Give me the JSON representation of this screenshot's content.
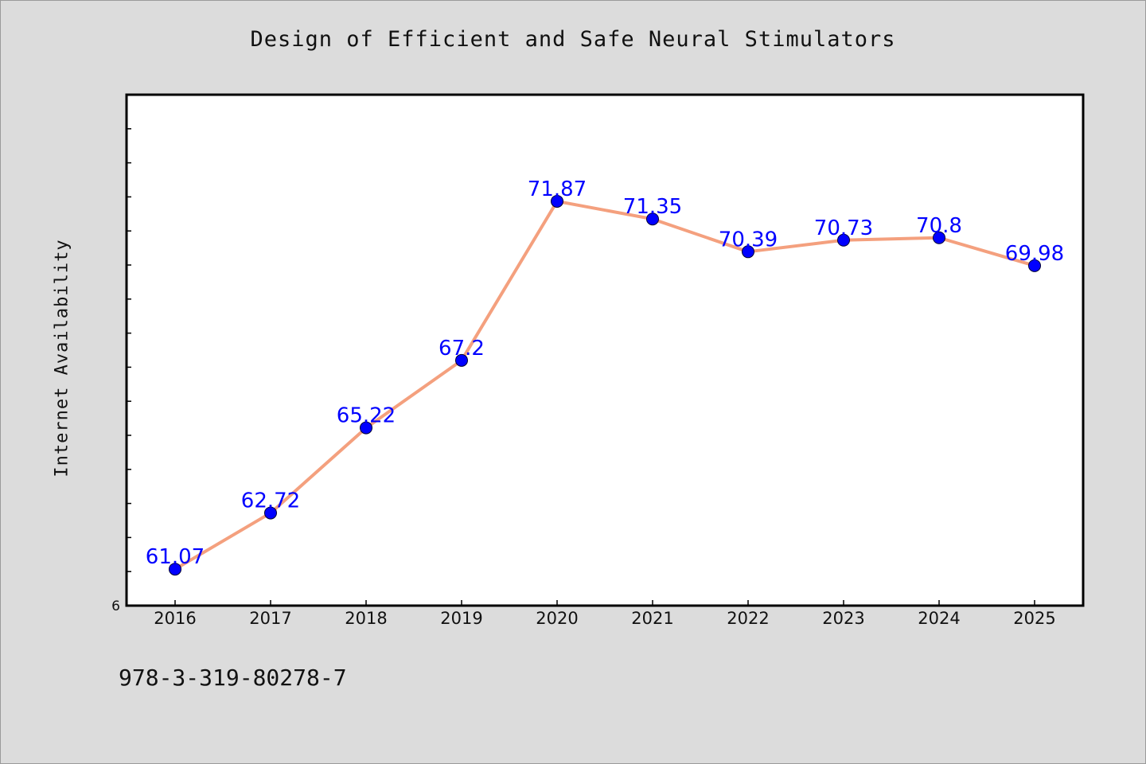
{
  "title": "Design of Efficient and Safe Neural Stimulators",
  "footer_text": "978-3-319-80278-7",
  "colors": {
    "background": "#dcdcdc",
    "plot_background": "#ffffff",
    "line": "#f4a07e",
    "marker": "#0000ff",
    "data_label": "#0000ff"
  },
  "chart_data": {
    "type": "line",
    "title": "Design of Efficient and Safe Neural Stimulators",
    "xlabel": "",
    "ylabel": "Internet Availability",
    "categories": [
      "2016",
      "2017",
      "2018",
      "2019",
      "2020",
      "2021",
      "2022",
      "2023",
      "2024",
      "2025"
    ],
    "series": [
      {
        "values": [
          61.07,
          62.72,
          65.22,
          67.2,
          71.87,
          71.35,
          70.39,
          70.73,
          70.8,
          69.98
        ]
      }
    ],
    "data_labels": [
      "61.07",
      "62.72",
      "65.22",
      "67.2",
      "71.87",
      "71.35",
      "70.39",
      "70.73",
      "70.8",
      "69.98"
    ],
    "y_tick_label": "6",
    "ylim": [
      60,
      75
    ],
    "grid": false,
    "legend": "none"
  }
}
